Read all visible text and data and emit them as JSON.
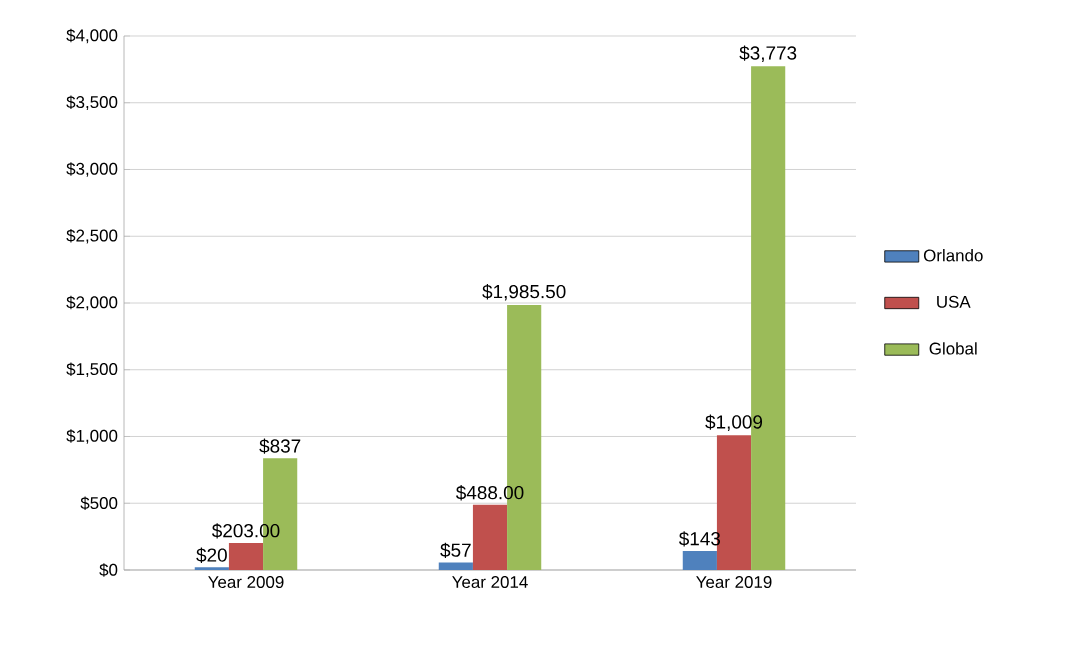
{
  "chart_data": {
    "type": "bar",
    "categories": [
      "Year 2009",
      "Year 2014",
      "Year 2019"
    ],
    "series": [
      {
        "name": "Orlando",
        "color": "#4f81bd",
        "values": [
          20,
          57,
          143
        ],
        "value_labels": [
          "$20",
          "$57",
          "$143"
        ]
      },
      {
        "name": "USA",
        "color": "#c0504d",
        "values": [
          203,
          488,
          1009
        ],
        "value_labels": [
          "$203.00",
          "$488.00",
          "$1,009"
        ]
      },
      {
        "name": "Global",
        "color": "#9bbb59",
        "values": [
          837,
          1985.5,
          3773
        ],
        "value_labels": [
          "$837",
          "$1,985.50",
          "$3,773"
        ]
      }
    ],
    "ylim": [
      0,
      4000
    ],
    "yticks": [
      {
        "value": 0,
        "label": "$0"
      },
      {
        "value": 500,
        "label": "$500"
      },
      {
        "value": 1000,
        "label": "$1,000"
      },
      {
        "value": 1500,
        "label": "$1,500"
      },
      {
        "value": 2000,
        "label": "$2,000"
      },
      {
        "value": 2500,
        "label": "$2,500"
      },
      {
        "value": 3000,
        "label": "$3,000"
      },
      {
        "value": 3500,
        "label": "$3,500"
      },
      {
        "value": 4000,
        "label": "$4,000"
      }
    ],
    "grid": "y",
    "legend": "right"
  }
}
